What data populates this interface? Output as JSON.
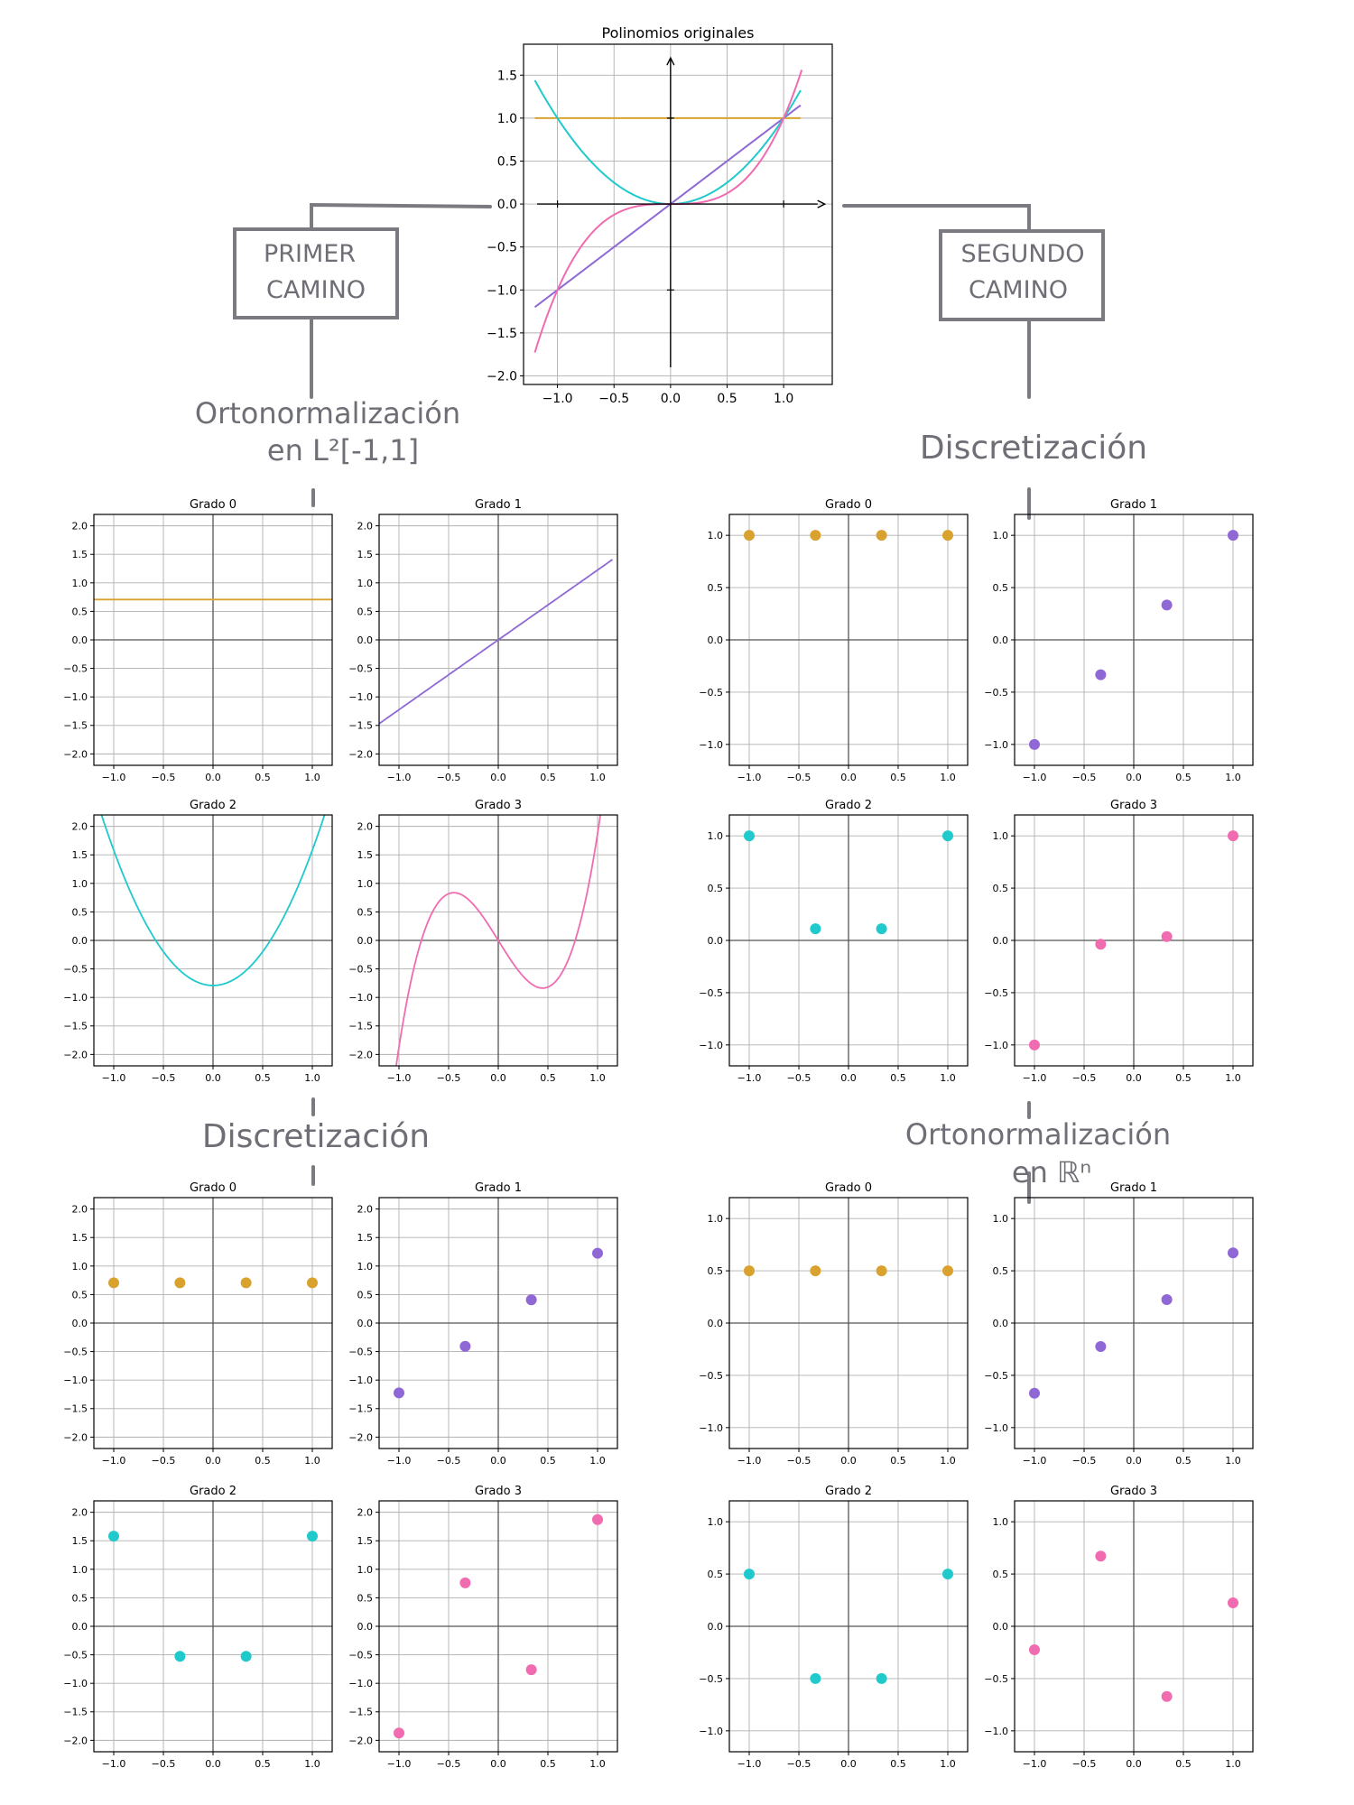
{
  "top_chart": {
    "title": "Polinomios originales",
    "xlim": [
      -1.3,
      1.43
    ],
    "ylim": [
      -2.1,
      1.86
    ],
    "xticks": [
      -1.0,
      -0.5,
      0.0,
      0.5,
      1.0
    ],
    "yticks": [
      -2.0,
      -1.5,
      -1.0,
      -0.5,
      0.0,
      0.5,
      1.0,
      1.5
    ],
    "xtick_labels": [
      "−1.0",
      "−0.5",
      "0.0",
      "0.5",
      "1.0"
    ],
    "ytick_labels": [
      "−2.0",
      "−1.5",
      "−1.0",
      "−0.5",
      "0.0",
      "0.5",
      "1.0",
      "1.5"
    ]
  },
  "diagram": {
    "left_box": [
      "PRIMER",
      "CAMINO"
    ],
    "right_box": [
      "SEGUNDO",
      "CAMINO"
    ],
    "left_step1": [
      "Ortonormalización",
      "en L²[-1,1]"
    ],
    "right_step1": [
      "Discretización"
    ],
    "left_step2": [
      "Discretización"
    ],
    "right_step2": [
      "Ortonormalización",
      "en ℝⁿ"
    ]
  },
  "colors": {
    "grado0": "#d9a22e",
    "grado1": "#8f68d6",
    "grado2": "#1fc9cc",
    "grado3": "#f06bb0",
    "grid": "#b0b0b0",
    "annotation": "#6e6e76"
  },
  "subplot_titles": [
    "Grado 0",
    "Grado 1",
    "Grado 2",
    "Grado 3"
  ],
  "chart_data": [
    {
      "type": "line",
      "title": "Polinomios originales",
      "x_range": [
        -1.2,
        1.15
      ],
      "series": [
        {
          "formula": "1",
          "color": "#d9a22e"
        },
        {
          "formula": "x",
          "color": "#8f68d6"
        },
        {
          "formula": "x^2",
          "color": "#1fc9cc"
        },
        {
          "formula": "x^3",
          "color": "#f06bb0"
        }
      ],
      "xlim": [
        -1.3,
        1.43
      ],
      "ylim": [
        -2.1,
        1.86
      ]
    },
    {
      "type": "line",
      "group": "Ortonormalización en L²[-1,1]",
      "xlim": [
        -1.2,
        1.2
      ],
      "ylim": [
        -2.2,
        2.2
      ],
      "panels": [
        {
          "title": "Grado 0",
          "formula": "0.7071",
          "x_range": [
            -1.2,
            1.2
          ]
        },
        {
          "title": "Grado 1",
          "formula": "1.2247*x",
          "x_range": [
            -1.2,
            1.15
          ]
        },
        {
          "title": "Grado 2",
          "formula": "1.5811*(1.5*x^2-0.5)",
          "x_range": [
            -1.2,
            1.2
          ]
        },
        {
          "title": "Grado 3",
          "formula": "1.8708*(2.5*x^3-1.5*x)",
          "x_range": [
            -1.2,
            1.2
          ]
        }
      ]
    },
    {
      "type": "scatter",
      "group": "Discretización",
      "xlim": [
        -1.2,
        1.2
      ],
      "ylim": [
        -1.2,
        1.2
      ],
      "panels": [
        {
          "title": "Grado 0",
          "x": [
            -1.0,
            -0.333,
            0.333,
            1.0
          ],
          "y": [
            1.0,
            1.0,
            1.0,
            1.0
          ]
        },
        {
          "title": "Grado 1",
          "x": [
            -1.0,
            -0.333,
            0.333,
            1.0
          ],
          "y": [
            -1.0,
            -0.333,
            0.333,
            1.0
          ]
        },
        {
          "title": "Grado 2",
          "x": [
            -1.0,
            -0.333,
            0.333,
            1.0
          ],
          "y": [
            1.0,
            0.111,
            0.111,
            1.0
          ]
        },
        {
          "title": "Grado 3",
          "x": [
            -1.0,
            -0.333,
            0.333,
            1.0
          ],
          "y": [
            -1.0,
            -0.037,
            0.037,
            1.0
          ]
        }
      ]
    },
    {
      "type": "scatter",
      "group": "Discretización",
      "xlim": [
        -1.2,
        1.2
      ],
      "ylim": [
        -2.2,
        2.2
      ],
      "panels": [
        {
          "title": "Grado 0",
          "x": [
            -1.0,
            -0.333,
            0.333,
            1.0
          ],
          "y": [
            0.707,
            0.707,
            0.707,
            0.707
          ]
        },
        {
          "title": "Grado 1",
          "x": [
            -1.0,
            -0.333,
            0.333,
            1.0
          ],
          "y": [
            -1.225,
            -0.408,
            0.408,
            1.225
          ]
        },
        {
          "title": "Grado 2",
          "x": [
            -1.0,
            -0.333,
            0.333,
            1.0
          ],
          "y": [
            1.581,
            -0.527,
            -0.527,
            1.581
          ]
        },
        {
          "title": "Grado 3",
          "x": [
            -1.0,
            -0.333,
            0.333,
            1.0
          ],
          "y": [
            -1.871,
            0.762,
            -0.762,
            1.871
          ]
        }
      ]
    },
    {
      "type": "scatter",
      "group": "Ortonormalización en ℝⁿ",
      "xlim": [
        -1.2,
        1.2
      ],
      "ylim": [
        -1.2,
        1.2
      ],
      "panels": [
        {
          "title": "Grado 0",
          "x": [
            -1.0,
            -0.333,
            0.333,
            1.0
          ],
          "y": [
            0.5,
            0.5,
            0.5,
            0.5
          ]
        },
        {
          "title": "Grado 1",
          "x": [
            -1.0,
            -0.333,
            0.333,
            1.0
          ],
          "y": [
            -0.671,
            -0.224,
            0.224,
            0.671
          ]
        },
        {
          "title": "Grado 2",
          "x": [
            -1.0,
            -0.333,
            0.333,
            1.0
          ],
          "y": [
            0.5,
            -0.5,
            -0.5,
            0.5
          ]
        },
        {
          "title": "Grado 3",
          "x": [
            -1.0,
            -0.333,
            0.333,
            1.0
          ],
          "y": [
            -0.224,
            0.671,
            -0.671,
            0.224
          ]
        }
      ]
    }
  ],
  "panel_ticks": {
    "xticks": [
      -1.0,
      -0.5,
      0.0,
      0.5,
      1.0
    ],
    "xtick_labels": [
      "−1.0",
      "−0.5",
      "0.0",
      "0.5",
      "1.0"
    ],
    "yticks_wide": [
      -2.0,
      -1.5,
      -1.0,
      -0.5,
      0.0,
      0.5,
      1.0,
      1.5,
      2.0
    ],
    "yticks_wide_labels": [
      "−2.0",
      "−1.5",
      "−1.0",
      "−0.5",
      "0.0",
      "0.5",
      "1.0",
      "1.5",
      "2.0"
    ],
    "yticks_narrow": [
      -1.0,
      -0.5,
      0.0,
      0.5,
      1.0
    ],
    "yticks_narrow_labels": [
      "−1.0",
      "−0.5",
      "0.0",
      "0.5",
      "1.0"
    ]
  }
}
